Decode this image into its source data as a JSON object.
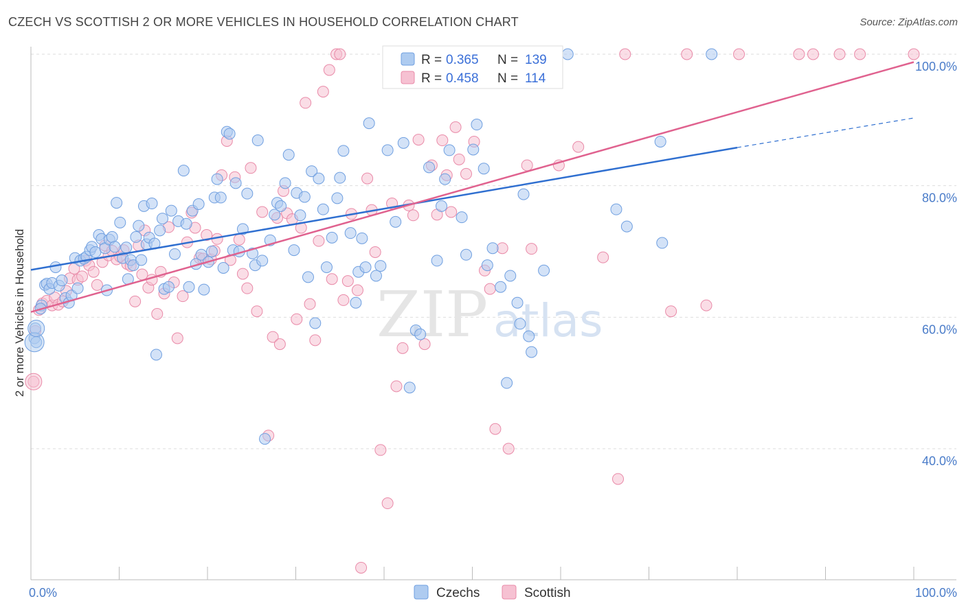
{
  "title": "CZECH VS SCOTTISH 2 OR MORE VEHICLES IN HOUSEHOLD CORRELATION CHART",
  "source": "Source: ZipAtlas.com",
  "watermark": {
    "zip": "ZIP",
    "atlas": "atlas"
  },
  "colors": {
    "blue_fill": "#aecbf0",
    "blue_stroke": "#6f9fe0",
    "blue_line": "#2f6fd0",
    "pink_fill": "#f6c1d2",
    "pink_stroke": "#e98aa8",
    "pink_line": "#e0628f",
    "grid": "#dddddd",
    "tick_label": "#4a7cc9"
  },
  "legend": {
    "rows": [
      {
        "r_label": "R =",
        "r_value": "0.365",
        "n_label": "N =",
        "n_value": "139"
      },
      {
        "r_label": "R =",
        "r_value": "0.458",
        "n_label": "N =",
        "n_value": "114"
      }
    ]
  },
  "bottom_legend": [
    "Czechs",
    "Scottish"
  ],
  "chart_data": {
    "type": "scatter",
    "title": "CZECH VS SCOTTISH 2 OR MORE VEHICLES IN HOUSEHOLD CORRELATION CHART",
    "xlabel": "",
    "ylabel": "2 or more Vehicles in Household",
    "xlim": [
      0,
      100
    ],
    "ylim": [
      20,
      102
    ],
    "x_tick_labels": [
      "0.0%",
      "100.0%"
    ],
    "y_ticks": [
      40,
      60,
      80,
      100
    ],
    "y_tick_labels": [
      "40.0%",
      "60.0%",
      "80.0%",
      "100.0%"
    ],
    "grid": true,
    "legend_position": "top-center",
    "series": [
      {
        "name": "Czechs",
        "r": 0.365,
        "n": 139,
        "trend": {
          "x0": 0,
          "y0": 67.2,
          "x1": 80,
          "y1": 85.8,
          "dashed_to_x": 100,
          "dashed_to_y": 90.3
        },
        "points": [
          [
            0.5,
            58.3
          ],
          [
            0.4,
            56.8
          ],
          [
            0.6,
            56.2
          ],
          [
            1.2,
            61.8
          ],
          [
            1.1,
            61.3
          ],
          [
            1.6,
            64.9
          ],
          [
            1.8,
            65.1
          ],
          [
            2.1,
            64.3
          ],
          [
            2.4,
            65.2
          ],
          [
            2.8,
            67.6
          ],
          [
            3.2,
            64.8
          ],
          [
            3.5,
            65.6
          ],
          [
            3.9,
            62.9
          ],
          [
            4.3,
            62.2
          ],
          [
            4.6,
            63.3
          ],
          [
            5.0,
            69.0
          ],
          [
            5.3,
            64.4
          ],
          [
            5.6,
            68.6
          ],
          [
            6.0,
            68.9
          ],
          [
            6.3,
            69.2
          ],
          [
            6.7,
            70.2
          ],
          [
            6.9,
            70.7
          ],
          [
            7.3,
            69.9
          ],
          [
            7.7,
            72.5
          ],
          [
            8.0,
            71.9
          ],
          [
            8.4,
            70.5
          ],
          [
            8.6,
            64.1
          ],
          [
            8.9,
            71.8
          ],
          [
            9.2,
            72.2
          ],
          [
            9.5,
            70.7
          ],
          [
            9.7,
            77.4
          ],
          [
            10.1,
            74.4
          ],
          [
            10.4,
            69.0
          ],
          [
            10.8,
            70.6
          ],
          [
            11.0,
            65.8
          ],
          [
            11.3,
            68.7
          ],
          [
            11.6,
            67.9
          ],
          [
            11.9,
            72.2
          ],
          [
            12.2,
            73.9
          ],
          [
            12.5,
            68.7
          ],
          [
            12.8,
            76.9
          ],
          [
            13.1,
            71.1
          ],
          [
            13.4,
            72.1
          ],
          [
            13.7,
            77.3
          ],
          [
            14.0,
            71.2
          ],
          [
            14.2,
            54.3
          ],
          [
            14.6,
            73.2
          ],
          [
            14.9,
            75.0
          ],
          [
            15.1,
            64.3
          ],
          [
            15.6,
            64.6
          ],
          [
            15.9,
            76.2
          ],
          [
            16.3,
            69.6
          ],
          [
            16.7,
            74.6
          ],
          [
            17.3,
            82.3
          ],
          [
            17.6,
            74.2
          ],
          [
            17.9,
            64.6
          ],
          [
            18.3,
            76.2
          ],
          [
            18.7,
            68.1
          ],
          [
            19.0,
            77.2
          ],
          [
            19.3,
            69.5
          ],
          [
            19.6,
            64.2
          ],
          [
            20.1,
            68.4
          ],
          [
            20.5,
            70.0
          ],
          [
            20.8,
            78.2
          ],
          [
            21.1,
            81.0
          ],
          [
            21.5,
            78.2
          ],
          [
            21.8,
            67.5
          ],
          [
            22.2,
            88.2
          ],
          [
            22.5,
            87.9
          ],
          [
            22.9,
            70.2
          ],
          [
            23.2,
            80.4
          ],
          [
            23.6,
            70.0
          ],
          [
            24.0,
            73.4
          ],
          [
            24.5,
            78.8
          ],
          [
            25.1,
            69.7
          ],
          [
            25.4,
            67.9
          ],
          [
            25.7,
            86.9
          ],
          [
            26.2,
            68.6
          ],
          [
            26.5,
            41.5
          ],
          [
            27.1,
            71.7
          ],
          [
            27.6,
            75.6
          ],
          [
            27.9,
            77.4
          ],
          [
            28.3,
            76.9
          ],
          [
            28.8,
            80.4
          ],
          [
            29.2,
            84.7
          ],
          [
            29.8,
            70.2
          ],
          [
            30.1,
            78.9
          ],
          [
            30.5,
            75.5
          ],
          [
            31.0,
            78.3
          ],
          [
            31.4,
            66.1
          ],
          [
            31.8,
            82.2
          ],
          [
            32.2,
            59.1
          ],
          [
            32.6,
            81.1
          ],
          [
            33.1,
            76.4
          ],
          [
            33.5,
            67.6
          ],
          [
            34.1,
            72.1
          ],
          [
            34.7,
            78.1
          ],
          [
            35.0,
            81.2
          ],
          [
            35.4,
            85.3
          ],
          [
            36.2,
            72.8
          ],
          [
            36.8,
            62.2
          ],
          [
            37.1,
            66.9
          ],
          [
            37.5,
            72.0
          ],
          [
            37.9,
            67.6
          ],
          [
            38.3,
            89.5
          ],
          [
            39.1,
            66.3
          ],
          [
            39.6,
            67.8
          ],
          [
            40.4,
            85.4
          ],
          [
            40.7,
            100.0
          ],
          [
            41.3,
            74.5
          ],
          [
            42.2,
            86.5
          ],
          [
            42.9,
            49.3
          ],
          [
            43.6,
            58.0
          ],
          [
            44.1,
            57.4
          ],
          [
            44.5,
            100.0
          ],
          [
            45.1,
            82.8
          ],
          [
            46.0,
            68.6
          ],
          [
            46.5,
            76.9
          ],
          [
            46.9,
            81.0
          ],
          [
            47.4,
            85.4
          ],
          [
            48.0,
            100.0
          ],
          [
            48.8,
            75.2
          ],
          [
            49.3,
            69.5
          ],
          [
            50.1,
            85.5
          ],
          [
            50.5,
            89.3
          ],
          [
            51.3,
            82.6
          ],
          [
            51.7,
            67.9
          ],
          [
            52.3,
            70.5
          ],
          [
            53.2,
            64.6
          ],
          [
            53.9,
            50.0
          ],
          [
            54.3,
            66.3
          ],
          [
            55.1,
            62.2
          ],
          [
            55.4,
            59.0
          ],
          [
            55.8,
            78.7
          ],
          [
            56.4,
            57.1
          ],
          [
            56.7,
            54.7
          ],
          [
            58.1,
            67.1
          ],
          [
            59.2,
            100.0
          ],
          [
            60.8,
            100.0
          ],
          [
            66.3,
            76.4
          ],
          [
            67.5,
            73.8
          ],
          [
            71.3,
            86.7
          ],
          [
            71.5,
            71.3
          ],
          [
            77.1,
            100.0
          ]
        ]
      },
      {
        "name": "Scottish",
        "r": 0.458,
        "n": 114,
        "trend": {
          "x0": 0,
          "y0": 60.8,
          "x1": 100,
          "y1": 98.8
        },
        "points": [
          [
            0.5,
            57.9
          ],
          [
            0.3,
            50.2
          ],
          [
            0.9,
            61.1
          ],
          [
            1.3,
            62.1
          ],
          [
            1.8,
            62.5
          ],
          [
            2.4,
            61.8
          ],
          [
            2.7,
            63.0
          ],
          [
            3.1,
            61.9
          ],
          [
            3.6,
            62.4
          ],
          [
            4.0,
            64.0
          ],
          [
            4.4,
            65.9
          ],
          [
            4.9,
            67.4
          ],
          [
            5.3,
            65.7
          ],
          [
            5.8,
            66.2
          ],
          [
            6.2,
            68.6
          ],
          [
            6.6,
            67.9
          ],
          [
            7.1,
            66.9
          ],
          [
            7.5,
            64.9
          ],
          [
            8.1,
            68.4
          ],
          [
            8.4,
            70.9
          ],
          [
            8.8,
            69.4
          ],
          [
            9.2,
            70.1
          ],
          [
            9.7,
            68.8
          ],
          [
            10.1,
            69.2
          ],
          [
            10.5,
            70.2
          ],
          [
            10.9,
            68.1
          ],
          [
            11.3,
            67.8
          ],
          [
            11.8,
            62.4
          ],
          [
            12.2,
            70.9
          ],
          [
            12.6,
            66.5
          ],
          [
            12.9,
            73.2
          ],
          [
            13.3,
            64.5
          ],
          [
            13.7,
            65.7
          ],
          [
            14.3,
            60.5
          ],
          [
            14.7,
            66.9
          ],
          [
            15.1,
            63.6
          ],
          [
            15.6,
            73.7
          ],
          [
            16.2,
            65.3
          ],
          [
            16.6,
            56.8
          ],
          [
            17.2,
            63.2
          ],
          [
            17.7,
            71.4
          ],
          [
            18.2,
            75.9
          ],
          [
            18.6,
            73.6
          ],
          [
            19.1,
            69.0
          ],
          [
            19.5,
            68.9
          ],
          [
            19.9,
            72.5
          ],
          [
            20.4,
            68.8
          ],
          [
            20.8,
            70.1
          ],
          [
            21.1,
            71.9
          ],
          [
            21.6,
            81.6
          ],
          [
            22.2,
            86.8
          ],
          [
            22.6,
            68.7
          ],
          [
            23.1,
            81.3
          ],
          [
            23.6,
            71.8
          ],
          [
            24.0,
            66.6
          ],
          [
            24.5,
            64.4
          ],
          [
            24.9,
            82.7
          ],
          [
            25.6,
            60.9
          ],
          [
            26.2,
            76.0
          ],
          [
            26.9,
            42.0
          ],
          [
            27.4,
            57.0
          ],
          [
            27.9,
            75.1
          ],
          [
            28.2,
            55.9
          ],
          [
            28.6,
            79.2
          ],
          [
            29.0,
            75.8
          ],
          [
            29.6,
            74.9
          ],
          [
            30.1,
            59.7
          ],
          [
            30.6,
            73.6
          ],
          [
            31.1,
            92.6
          ],
          [
            31.6,
            62.0
          ],
          [
            32.2,
            56.5
          ],
          [
            32.6,
            71.6
          ],
          [
            33.1,
            94.3
          ],
          [
            33.8,
            97.6
          ],
          [
            34.1,
            65.8
          ],
          [
            34.6,
            100.0
          ],
          [
            35.0,
            100.0
          ],
          [
            35.4,
            62.6
          ],
          [
            35.9,
            65.5
          ],
          [
            36.3,
            75.7
          ],
          [
            37.0,
            64.1
          ],
          [
            37.4,
            21.9
          ],
          [
            38.1,
            81.1
          ],
          [
            38.6,
            76.3
          ],
          [
            39.0,
            69.9
          ],
          [
            39.6,
            39.8
          ],
          [
            40.4,
            31.7
          ],
          [
            40.9,
            77.3
          ],
          [
            41.4,
            49.5
          ],
          [
            42.1,
            55.3
          ],
          [
            42.8,
            77.0
          ],
          [
            43.3,
            75.5
          ],
          [
            43.9,
            87.0
          ],
          [
            44.6,
            55.9
          ],
          [
            45.4,
            83.1
          ],
          [
            46.0,
            75.6
          ],
          [
            46.6,
            86.9
          ],
          [
            47.1,
            81.6
          ],
          [
            47.6,
            76.0
          ],
          [
            48.1,
            88.9
          ],
          [
            48.5,
            84.0
          ],
          [
            49.3,
            81.8
          ],
          [
            50.2,
            86.7
          ],
          [
            50.8,
            96.2
          ],
          [
            51.4,
            67.1
          ],
          [
            52.0,
            64.3
          ],
          [
            52.6,
            43.0
          ],
          [
            53.4,
            70.5
          ],
          [
            54.1,
            40.0
          ],
          [
            56.2,
            83.1
          ],
          [
            56.7,
            70.4
          ],
          [
            59.8,
            83.1
          ],
          [
            62.0,
            85.9
          ],
          [
            64.8,
            69.1
          ],
          [
            66.5,
            35.4
          ],
          [
            67.3,
            100.0
          ],
          [
            72.5,
            60.9
          ],
          [
            74.3,
            100.0
          ],
          [
            76.5,
            61.8
          ],
          [
            80.2,
            100.0
          ],
          [
            87.0,
            100.0
          ],
          [
            88.6,
            100.0
          ],
          [
            91.6,
            100.0
          ],
          [
            93.9,
            100.0
          ],
          [
            100.0,
            100.0
          ]
        ]
      }
    ]
  }
}
